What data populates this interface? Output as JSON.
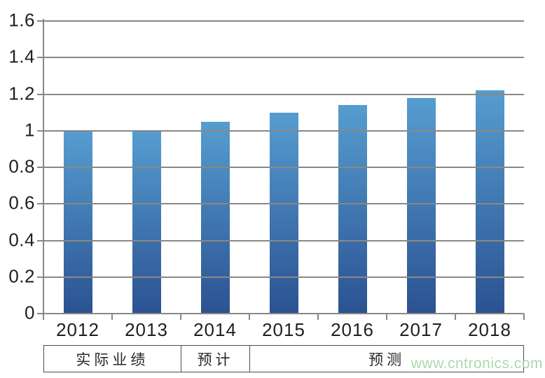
{
  "chart_data": {
    "type": "bar",
    "title": "",
    "xlabel": "",
    "ylabel": "",
    "categories": [
      "2012",
      "2013",
      "2014",
      "2015",
      "2016",
      "2017",
      "2018"
    ],
    "values": [
      1.0,
      1.0,
      1.05,
      1.1,
      1.14,
      1.18,
      1.22
    ],
    "ylim": [
      0,
      1.6
    ],
    "ytick_step": 0.2,
    "ytick_labels": [
      "0",
      "0.2",
      "0.4",
      "0.6",
      "0.8",
      "1",
      "1.2",
      "1.4",
      "1.6"
    ],
    "grid": true,
    "grid_position": "above-bars",
    "legend": false,
    "phase_groups": [
      {
        "label": "实际业绩",
        "span": 2
      },
      {
        "label": "预计",
        "span": 1
      },
      {
        "label": "预测",
        "span": 4
      }
    ]
  },
  "watermark": {
    "text": "www.cntronics.com",
    "color": "#ACD8AC"
  },
  "colors": {
    "bar_gradient_top": "#569DD0",
    "bar_gradient_bottom": "#2B5291",
    "gridline": "#8A8884",
    "axis": "#8A8884",
    "tick": "#8A8884",
    "label_text": "#1f1f1f",
    "table_border": "#4e4e4e",
    "background": "#ffffff"
  }
}
